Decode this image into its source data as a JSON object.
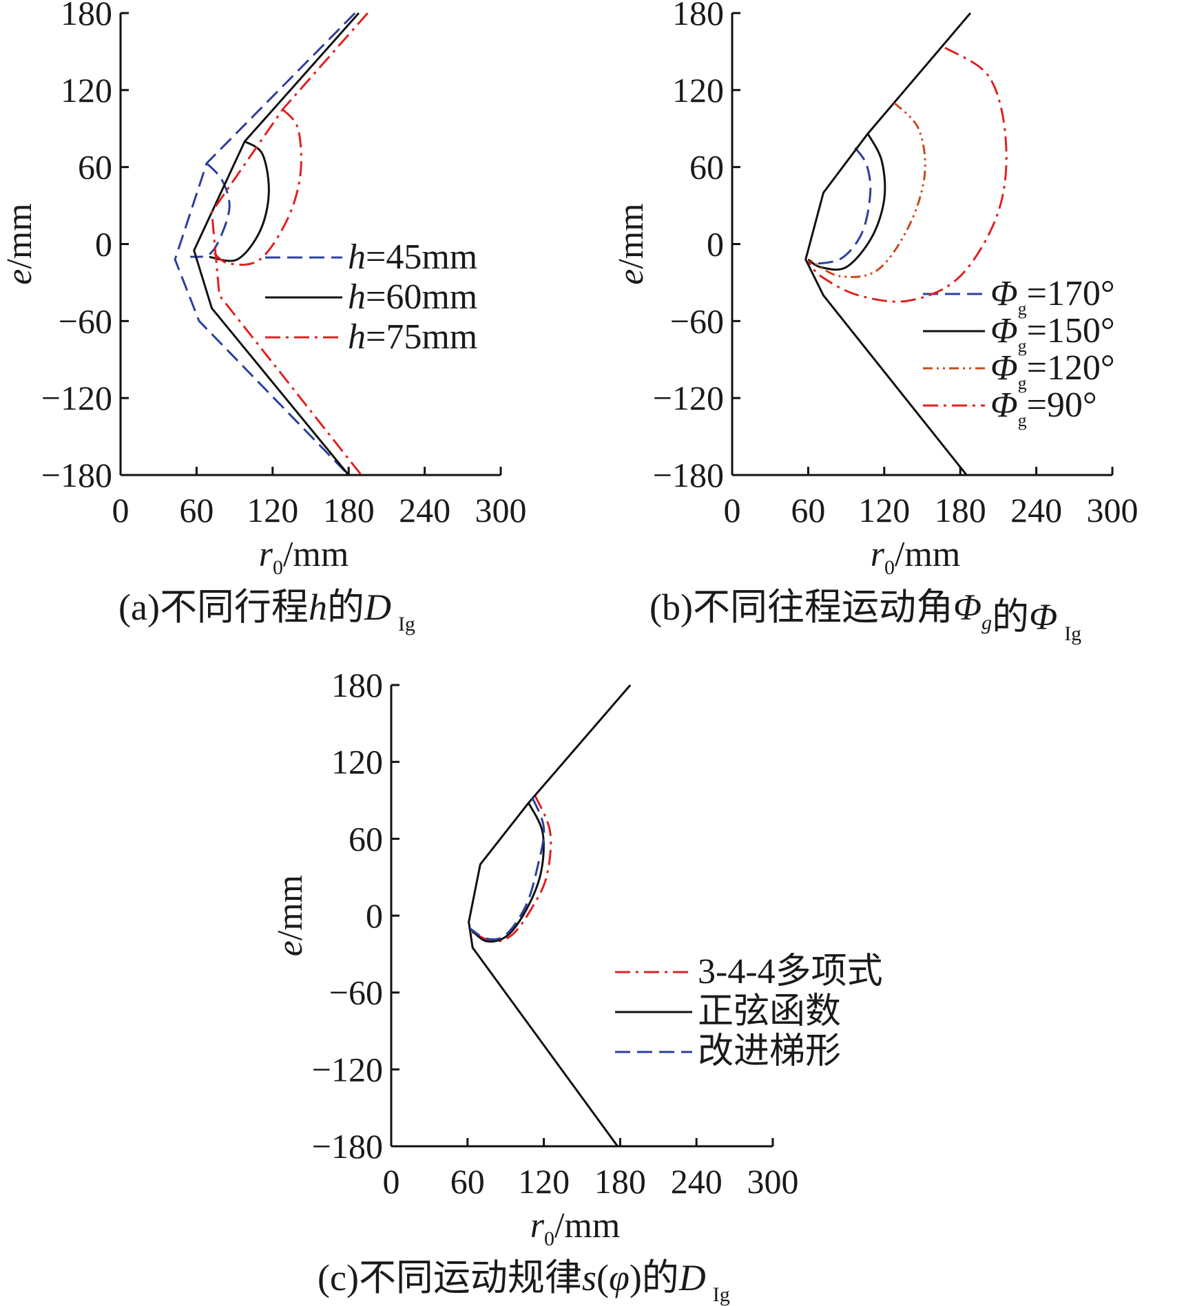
{
  "chart_data": [
    {
      "type": "line",
      "caption": {
        "prefix": "(a)",
        "text": "不同行程",
        "sym": "h",
        "mid": "的",
        "sym2": "D",
        "sub": "Ig"
      },
      "xlabel": {
        "sym": "r",
        "sub": "0",
        "unit": "/mm"
      },
      "ylabel": {
        "sym": "e",
        "unit": "/mm"
      },
      "xlim": [
        0,
        300
      ],
      "ylim": [
        -180,
        180
      ],
      "xticks": [
        "0",
        "60",
        "120",
        "180",
        "240",
        "300"
      ],
      "yticks": [
        "180",
        "120",
        "60",
        "0",
        "−60",
        "−120",
        "−180"
      ],
      "legend_position": "right-center",
      "series": [
        {
          "name": "h=45mm",
          "label_sym": "h",
          "label_rest": "=45mm",
          "color": "#2b3f9e",
          "dash": "dash",
          "outer": [
            [
              185,
              180
            ],
            [
              68,
              63
            ],
            [
              43,
              -12
            ],
            [
              62,
              -60
            ],
            [
              180,
              -180
            ]
          ],
          "loop": [
            [
              68,
              63
            ],
            [
              80,
              50
            ],
            [
              86,
              30
            ],
            [
              80,
              8
            ],
            [
              70,
              -8
            ],
            [
              55,
              -10
            ]
          ]
        },
        {
          "name": "h=60mm",
          "label_sym": "h",
          "label_rest": "=60mm",
          "color": "#111111",
          "dash": "solid",
          "outer": [
            [
              188,
              180
            ],
            [
              98,
              80
            ],
            [
              58,
              -5
            ],
            [
              72,
              -50
            ],
            [
              180,
              -180
            ]
          ],
          "loop": [
            [
              98,
              80
            ],
            [
              112,
              70
            ],
            [
              117,
              40
            ],
            [
              110,
              10
            ],
            [
              92,
              -12
            ],
            [
              70,
              -10
            ]
          ]
        },
        {
          "name": "h=75mm",
          "label_sym": "h",
          "label_rest": "=75mm",
          "color": "#e02020",
          "dash": "dashdot",
          "outer": [
            [
              195,
              180
            ],
            [
              128,
              105
            ],
            [
              72,
              25
            ],
            [
              78,
              -40
            ],
            [
              190,
              -180
            ]
          ],
          "loop": [
            [
              128,
              105
            ],
            [
              140,
              90
            ],
            [
              142,
              55
            ],
            [
              132,
              20
            ],
            [
              110,
              -12
            ],
            [
              85,
              -15
            ],
            [
              72,
              -5
            ]
          ]
        }
      ]
    },
    {
      "type": "line",
      "caption": {
        "prefix": "(b)",
        "text": "不同往程运动角",
        "sym": "Φ",
        "symsub": "g",
        "mid": "的",
        "sym2": "Φ",
        "sub": "Ig"
      },
      "xlabel": {
        "sym": "r",
        "sub": "0",
        "unit": "/mm"
      },
      "ylabel": {
        "sym": "e",
        "unit": "/mm"
      },
      "xlim": [
        0,
        300
      ],
      "ylim": [
        -180,
        180
      ],
      "xticks": [
        "0",
        "60",
        "120",
        "180",
        "240",
        "300"
      ],
      "yticks": [
        "180",
        "120",
        "60",
        "0",
        "−60",
        "−120",
        "−180"
      ],
      "legend_position": "bottom-right",
      "series": [
        {
          "name": "Φg=170°",
          "label_sym": "Φ",
          "label_sub": "g",
          "label_rest": "=170°",
          "color": "#2b3f9e",
          "dash": "dash",
          "loop": [
            [
              97,
              75
            ],
            [
              106,
              62
            ],
            [
              109,
              40
            ],
            [
              103,
              10
            ],
            [
              88,
              -10
            ],
            [
              70,
              -15
            ],
            [
              61,
              -13
            ]
          ]
        },
        {
          "name": "Φg=150°",
          "label_sym": "Φ",
          "label_sub": "g",
          "label_rest": "=150°",
          "color": "#111111",
          "dash": "solid",
          "outer": [
            [
              188,
              180
            ],
            [
              107,
              86
            ],
            [
              72,
              40
            ],
            [
              58,
              -12
            ],
            [
              72,
              -40
            ],
            [
              185,
              -180
            ]
          ],
          "loop": [
            [
              107,
              86
            ],
            [
              118,
              65
            ],
            [
              120,
              35
            ],
            [
              110,
              5
            ],
            [
              90,
              -18
            ],
            [
              70,
              -18
            ],
            [
              60,
              -12
            ]
          ]
        },
        {
          "name": "Φg=120°",
          "label_sym": "Φ",
          "label_sub": "g",
          "label_rest": "=120°",
          "color": "#c84a1a",
          "dash": "dashdotdot",
          "loop": [
            [
              128,
              110
            ],
            [
              147,
              90
            ],
            [
              152,
              55
            ],
            [
              140,
              15
            ],
            [
              115,
              -20
            ],
            [
              85,
              -25
            ],
            [
              62,
              -13
            ]
          ]
        },
        {
          "name": "Φg=90°",
          "label_sym": "Φ",
          "label_sub": "g",
          "label_rest": "=90°",
          "color": "#e02020",
          "dash": "dashdot",
          "loop": [
            [
              168,
              153
            ],
            [
              203,
              130
            ],
            [
              216,
              80
            ],
            [
              210,
              25
            ],
            [
              180,
              -25
            ],
            [
              140,
              -44
            ],
            [
              100,
              -40
            ],
            [
              70,
              -25
            ],
            [
              60,
              -13
            ]
          ]
        }
      ]
    },
    {
      "type": "line",
      "caption": {
        "prefix": "(c)",
        "text": "不同运动规律",
        "sym": "s",
        "paren_sym": "φ",
        "mid": "的",
        "sym2": "D",
        "sub": "Ig"
      },
      "xlabel": {
        "sym": "r",
        "sub": "0",
        "unit": "/mm"
      },
      "ylabel": {
        "sym": "e",
        "unit": "/mm"
      },
      "xlim": [
        0,
        300
      ],
      "ylim": [
        -180,
        180
      ],
      "xticks": [
        "0",
        "60",
        "120",
        "180",
        "240",
        "300"
      ],
      "yticks": [
        "180",
        "120",
        "60",
        "0",
        "−60",
        "−120",
        "−180"
      ],
      "legend_position": "bottom-right",
      "series": [
        {
          "name": "3-4-4多项式",
          "color": "#e02020",
          "dash": "dashdot",
          "loop": [
            [
              113,
              94
            ],
            [
              125,
              65
            ],
            [
              122,
              30
            ],
            [
              110,
              5
            ],
            [
              95,
              -15
            ],
            [
              80,
              -20
            ],
            [
              62,
              -12
            ]
          ]
        },
        {
          "name": "正弦函数",
          "color": "#111111",
          "dash": "solid",
          "outer": [
            [
              188,
              180
            ],
            [
              108,
              88
            ],
            [
              70,
              40
            ],
            [
              61,
              -5
            ],
            [
              64,
              -25
            ],
            [
              178,
              -180
            ]
          ],
          "loop": [
            [
              108,
              88
            ],
            [
              119,
              65
            ],
            [
              118,
              35
            ],
            [
              108,
              8
            ],
            [
              92,
              -15
            ],
            [
              75,
              -20
            ],
            [
              62,
              -10
            ]
          ]
        },
        {
          "name": "改进梯形",
          "color": "#2b3f9e",
          "dash": "dash",
          "loop": [
            [
              111,
              92
            ],
            [
              120,
              68
            ],
            [
              115,
              38
            ],
            [
              106,
              8
            ],
            [
              90,
              -15
            ],
            [
              75,
              -18
            ],
            [
              62,
              -10
            ]
          ]
        }
      ]
    }
  ]
}
